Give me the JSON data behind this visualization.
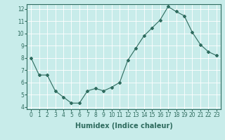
{
  "x": [
    0,
    1,
    2,
    3,
    4,
    5,
    6,
    7,
    8,
    9,
    10,
    11,
    12,
    13,
    14,
    15,
    16,
    17,
    18,
    19,
    20,
    21,
    22,
    23
  ],
  "y": [
    8.0,
    6.6,
    6.6,
    5.3,
    4.8,
    4.3,
    4.3,
    5.3,
    5.5,
    5.3,
    5.6,
    6.0,
    7.8,
    8.8,
    9.8,
    10.45,
    11.1,
    12.2,
    11.8,
    11.45,
    10.1,
    9.1,
    8.5,
    8.2
  ],
  "ylim": [
    3.8,
    12.4
  ],
  "yticks": [
    4,
    5,
    6,
    7,
    8,
    9,
    10,
    11,
    12
  ],
  "xlim": [
    -0.5,
    23.5
  ],
  "xticks": [
    0,
    1,
    2,
    3,
    4,
    5,
    6,
    7,
    8,
    9,
    10,
    11,
    12,
    13,
    14,
    15,
    16,
    17,
    18,
    19,
    20,
    21,
    22,
    23
  ],
  "xlabel": "Humidex (Indice chaleur)",
  "line_color": "#2e6b5e",
  "marker": "D",
  "marker_size": 2,
  "bg_color": "#c8ecea",
  "grid_color": "#ffffff",
  "tick_label_fontsize": 5.5,
  "xlabel_fontsize": 7,
  "xlabel_fontweight": "bold"
}
